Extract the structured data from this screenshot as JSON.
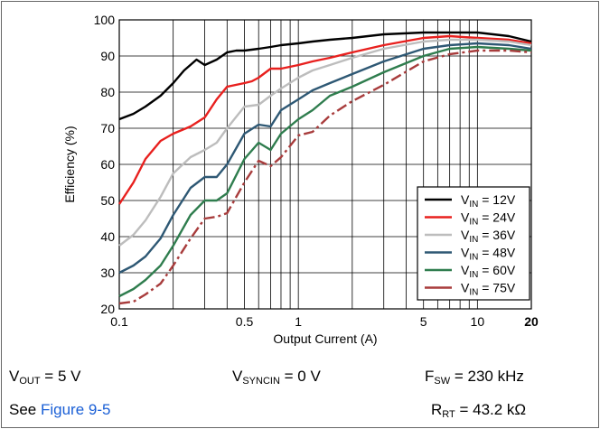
{
  "chart_data": {
    "type": "line",
    "xlabel": "Output Current (A)",
    "ylabel": "Efficiency (%)",
    "x_scale": "log",
    "xlim": [
      0.1,
      20
    ],
    "ylim": [
      20,
      100
    ],
    "x_ticks": [
      {
        "value": 0.1,
        "label": "0.1"
      },
      {
        "value": 0.5,
        "label": "0.5"
      },
      {
        "value": 1,
        "label": "1"
      },
      {
        "value": 5,
        "label": "5"
      },
      {
        "value": 10,
        "label": "10"
      },
      {
        "value": 20,
        "label": "20"
      }
    ],
    "y_ticks": [
      20,
      30,
      40,
      50,
      60,
      70,
      80,
      90,
      100
    ],
    "grid": true,
    "legend_position": "bottom-right",
    "series": [
      {
        "name": "12V",
        "color": "#000000",
        "dash": "solid",
        "x": [
          0.1,
          0.12,
          0.14,
          0.17,
          0.2,
          0.23,
          0.27,
          0.3,
          0.35,
          0.4,
          0.45,
          0.5,
          0.6,
          0.7,
          0.8,
          1,
          1.2,
          1.5,
          2,
          3,
          5,
          7,
          10,
          15,
          20
        ],
        "y": [
          72.5,
          74,
          76,
          79,
          82.5,
          86,
          89,
          87.5,
          89,
          91,
          91.5,
          91.5,
          92,
          92.5,
          93,
          93.5,
          94,
          94.5,
          95,
          96,
          96.5,
          96.5,
          96.5,
          95.5,
          94
        ]
      },
      {
        "name": "24V",
        "color": "#e8201e",
        "dash": "solid",
        "x": [
          0.1,
          0.12,
          0.14,
          0.17,
          0.2,
          0.25,
          0.3,
          0.35,
          0.4,
          0.5,
          0.55,
          0.6,
          0.7,
          0.8,
          1,
          1.2,
          1.5,
          2,
          3,
          5,
          7,
          10,
          15,
          20
        ],
        "y": [
          49,
          55,
          61.5,
          66.5,
          68.5,
          70.5,
          73,
          78,
          81.5,
          82.5,
          83,
          84,
          86.5,
          86.5,
          87.5,
          88.5,
          89.5,
          91,
          93,
          95,
          95.5,
          95,
          94.5,
          93.5
        ]
      },
      {
        "name": "36V",
        "color": "#bdbdbd",
        "dash": "solid",
        "x": [
          0.1,
          0.12,
          0.14,
          0.17,
          0.2,
          0.25,
          0.3,
          0.35,
          0.4,
          0.5,
          0.6,
          0.7,
          0.8,
          1,
          1.2,
          1.5,
          2,
          3,
          5,
          7,
          10,
          15,
          20
        ],
        "y": [
          37.5,
          40.5,
          44.5,
          51,
          57.5,
          62,
          64,
          66,
          70,
          76,
          76.5,
          79,
          81,
          84,
          86,
          87.5,
          89.5,
          92,
          94,
          94.5,
          94.5,
          94,
          93
        ]
      },
      {
        "name": "48V",
        "color": "#2e5874",
        "dash": "solid",
        "x": [
          0.1,
          0.12,
          0.14,
          0.17,
          0.2,
          0.25,
          0.3,
          0.35,
          0.4,
          0.5,
          0.6,
          0.7,
          0.8,
          1,
          1.2,
          1.5,
          2,
          3,
          5,
          7,
          10,
          15,
          20
        ],
        "y": [
          30,
          32,
          34.5,
          39.5,
          46,
          53.5,
          56.5,
          56.5,
          60,
          68.5,
          71,
          70.5,
          75,
          78,
          80.5,
          82.5,
          85,
          88.5,
          92,
          93,
          93.5,
          93,
          92
        ]
      },
      {
        "name": "60V",
        "color": "#2f7d4e",
        "dash": "solid",
        "x": [
          0.1,
          0.12,
          0.14,
          0.17,
          0.2,
          0.25,
          0.3,
          0.35,
          0.4,
          0.5,
          0.6,
          0.7,
          0.8,
          1,
          1.2,
          1.5,
          2,
          3,
          5,
          7,
          10,
          15,
          20
        ],
        "y": [
          23.5,
          25.5,
          28,
          32,
          37.5,
          46,
          50,
          50,
          52,
          61.5,
          66,
          64,
          68.5,
          72.5,
          75,
          79,
          81.5,
          85.5,
          90,
          92,
          92.5,
          92,
          91.5
        ]
      },
      {
        "name": "75V",
        "color": "#a83c3c",
        "dash": "dashdot",
        "x": [
          0.1,
          0.12,
          0.14,
          0.17,
          0.2,
          0.25,
          0.3,
          0.35,
          0.4,
          0.5,
          0.6,
          0.7,
          0.8,
          1,
          1.2,
          1.5,
          2,
          3,
          5,
          7,
          10,
          15,
          20
        ],
        "y": [
          21.5,
          22,
          24,
          27,
          32,
          39.5,
          45,
          45.5,
          46.5,
          55,
          61,
          59.5,
          62,
          68,
          69,
          73.5,
          77.5,
          82,
          88.5,
          90.5,
          91.5,
          91.5,
          91
        ]
      }
    ]
  },
  "legend": {
    "prefix": "V",
    "sub": "IN",
    "eq": "= "
  },
  "footer": {
    "vout": {
      "main": "V",
      "sub": "OUT",
      "rest": " = 5 V"
    },
    "vsync": {
      "main": "V",
      "sub": "SYNCIN",
      "rest": " = 0 V"
    },
    "fsw": {
      "main": "F",
      "sub": "SW",
      "rest": " = 230 kHz"
    },
    "see": "See ",
    "link": "Figure 9-5",
    "rrt": {
      "main": "R",
      "sub": "RT",
      "rest": " = 43.2 kΩ"
    }
  }
}
